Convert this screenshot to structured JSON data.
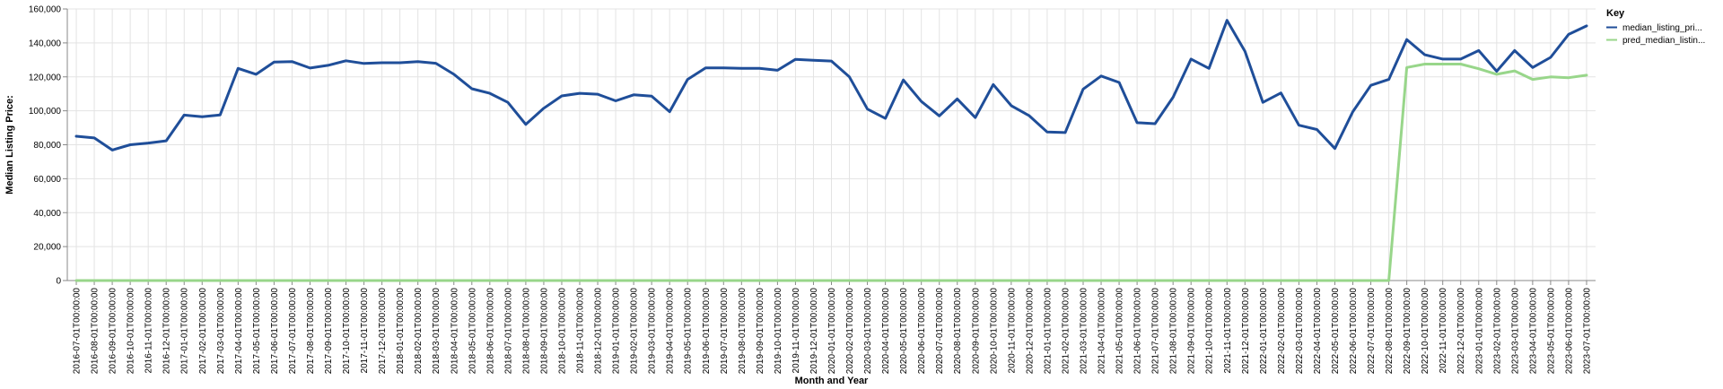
{
  "chart_data": {
    "type": "line",
    "xlabel": "Month and Year",
    "ylabel": "Median Listing Price:",
    "ylim": [
      0,
      160000
    ],
    "yticks": [
      0,
      20000,
      40000,
      60000,
      80000,
      100000,
      120000,
      140000,
      160000
    ],
    "ytick_labels": [
      "0",
      "20,000",
      "40,000",
      "60,000",
      "80,000",
      "100,000",
      "120,000",
      "140,000",
      "160,000"
    ],
    "grid": true,
    "legend": {
      "title": "Key",
      "position": "right"
    },
    "x": [
      "2016-07-01T00:00:00",
      "2016-08-01T00:00:00",
      "2016-09-01T00:00:00",
      "2016-10-01T00:00:00",
      "2016-11-01T00:00:00",
      "2016-12-01T00:00:00",
      "2017-01-01T00:00:00",
      "2017-02-01T00:00:00",
      "2017-03-01T00:00:00",
      "2017-04-01T00:00:00",
      "2017-05-01T00:00:00",
      "2017-06-01T00:00:00",
      "2017-07-01T00:00:00",
      "2017-08-01T00:00:00",
      "2017-09-01T00:00:00",
      "2017-10-01T00:00:00",
      "2017-11-01T00:00:00",
      "2017-12-01T00:00:00",
      "2018-01-01T00:00:00",
      "2018-02-01T00:00:00",
      "2018-03-01T00:00:00",
      "2018-04-01T00:00:00",
      "2018-05-01T00:00:00",
      "2018-06-01T00:00:00",
      "2018-07-01T00:00:00",
      "2018-08-01T00:00:00",
      "2018-09-01T00:00:00",
      "2018-10-01T00:00:00",
      "2018-11-01T00:00:00",
      "2018-12-01T00:00:00",
      "2019-01-01T00:00:00",
      "2019-02-01T00:00:00",
      "2019-03-01T00:00:00",
      "2019-04-01T00:00:00",
      "2019-05-01T00:00:00",
      "2019-06-01T00:00:00",
      "2019-07-01T00:00:00",
      "2019-08-01T00:00:00",
      "2019-09-01T00:00:00",
      "2019-10-01T00:00:00",
      "2019-11-01T00:00:00",
      "2019-12-01T00:00:00",
      "2020-01-01T00:00:00",
      "2020-02-01T00:00:00",
      "2020-03-01T00:00:00",
      "2020-04-01T00:00:00",
      "2020-05-01T00:00:00",
      "2020-06-01T00:00:00",
      "2020-07-01T00:00:00",
      "2020-08-01T00:00:00",
      "2020-09-01T00:00:00",
      "2020-10-01T00:00:00",
      "2020-11-01T00:00:00",
      "2020-12-01T00:00:00",
      "2021-01-01T00:00:00",
      "2021-02-01T00:00:00",
      "2021-03-01T00:00:00",
      "2021-04-01T00:00:00",
      "2021-05-01T00:00:00",
      "2021-06-01T00:00:00",
      "2021-07-01T00:00:00",
      "2021-08-01T00:00:00",
      "2021-09-01T00:00:00",
      "2021-10-01T00:00:00",
      "2021-11-01T00:00:00",
      "2021-12-01T00:00:00",
      "2022-01-01T00:00:00",
      "2022-02-01T00:00:00",
      "2022-03-01T00:00:00",
      "2022-04-01T00:00:00",
      "2022-05-01T00:00:00",
      "2022-06-01T00:00:00",
      "2022-07-01T00:00:00",
      "2022-08-01T00:00:00",
      "2022-09-01T00:00:00",
      "2022-10-01T00:00:00",
      "2022-11-01T00:00:00",
      "2022-12-01T00:00:00",
      "2023-01-01T00:00:00",
      "2023-02-01T00:00:00",
      "2023-03-01T00:00:00",
      "2023-04-01T00:00:00",
      "2023-05-01T00:00:00",
      "2023-06-01T00:00:00",
      "2023-07-01T00:00:00"
    ],
    "series": [
      {
        "name": "median_listing_pri...",
        "color": "#1f4e99",
        "values": [
          85000,
          84000,
          76900,
          80000,
          81000,
          82300,
          97500,
          96500,
          97600,
          125000,
          121500,
          128700,
          129000,
          125200,
          126800,
          129500,
          127900,
          128300,
          128300,
          129000,
          128000,
          121500,
          113000,
          110300,
          105000,
          92000,
          101500,
          108800,
          110300,
          109800,
          105900,
          109400,
          108600,
          99500,
          118500,
          125300,
          125300,
          125000,
          125000,
          123900,
          130300,
          129800,
          129300,
          120000,
          101000,
          95500,
          118200,
          105500,
          97000,
          107000,
          96000,
          115500,
          103000,
          97100,
          87500,
          87200,
          112800,
          120500,
          116700,
          93000,
          92400,
          108000,
          130500,
          125000,
          153300,
          135000,
          105000,
          110500,
          91500,
          89000,
          77800,
          99500,
          115000,
          118500,
          142000,
          133000,
          130500,
          130500,
          135500,
          123300,
          135500,
          125500,
          131500,
          145000,
          150000
        ]
      },
      {
        "name": "pred_median_listin...",
        "color": "#98d68a",
        "values": [
          0,
          0,
          0,
          0,
          0,
          0,
          0,
          0,
          0,
          0,
          0,
          0,
          0,
          0,
          0,
          0,
          0,
          0,
          0,
          0,
          0,
          0,
          0,
          0,
          0,
          0,
          0,
          0,
          0,
          0,
          0,
          0,
          0,
          0,
          0,
          0,
          0,
          0,
          0,
          0,
          0,
          0,
          0,
          0,
          0,
          0,
          0,
          0,
          0,
          0,
          0,
          0,
          0,
          0,
          0,
          0,
          0,
          0,
          0,
          0,
          0,
          0,
          0,
          0,
          0,
          0,
          0,
          0,
          0,
          0,
          0,
          0,
          0,
          0,
          125500,
          127500,
          127500,
          127500,
          124800,
          121500,
          123500,
          118500,
          120000,
          119500,
          121000
        ]
      }
    ]
  }
}
